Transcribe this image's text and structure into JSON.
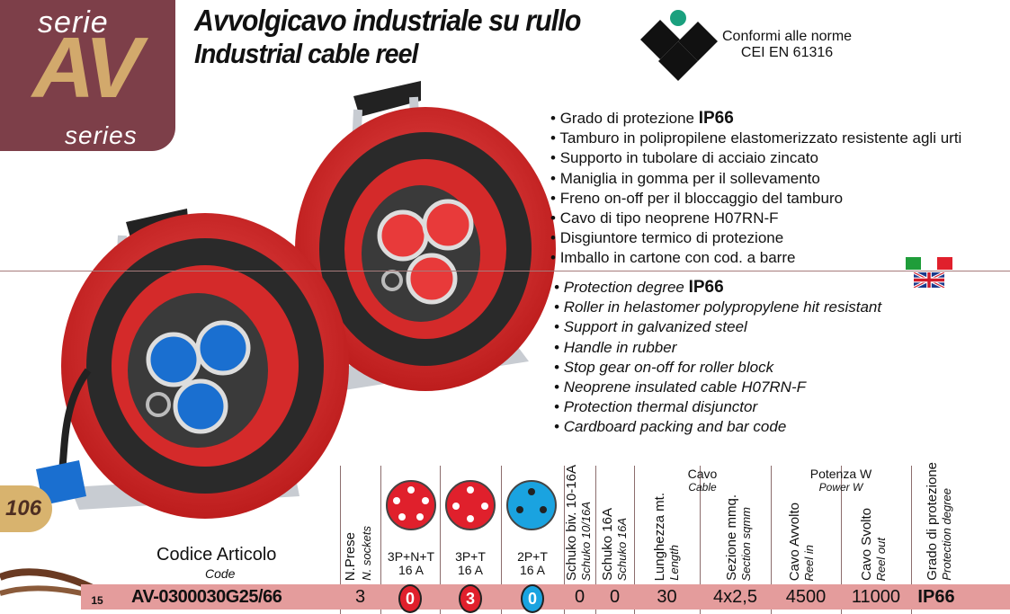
{
  "badge": {
    "serie": "serie",
    "av": "AV",
    "series": "series"
  },
  "title": {
    "it": "Avvolgicavo industriale su rullo",
    "en": "Industrial cable reel"
  },
  "norms": {
    "line1": "Conformi alle norme",
    "line2": "CEI EN 61316"
  },
  "features_it": [
    {
      "text": "Grado di protezione ",
      "strong": "IP66"
    },
    {
      "text": "Tamburo in polipropilene elastomerizzato resistente agli urti"
    },
    {
      "text": "Supporto in tubolare di acciaio zincato"
    },
    {
      "text": "Maniglia in gomma per il sollevamento"
    },
    {
      "text": "Freno on-off per il bloccaggio del tamburo"
    },
    {
      "text": "Cavo di tipo neoprene H07RN-F"
    },
    {
      "text": "Disgiuntore termico di protezione"
    },
    {
      "text": "Imballo in cartone con cod. a barre"
    }
  ],
  "features_en": [
    {
      "text": "Protection degree ",
      "strong": "IP66"
    },
    {
      "text": "Roller in helastomer polypropylene hit resistant"
    },
    {
      "text": "Support in galvanized steel"
    },
    {
      "text": "Handle in rubber"
    },
    {
      "text": "Stop gear on-off for roller block"
    },
    {
      "text": "Neoprene insulated cable H07RN-F"
    },
    {
      "text": "Protection thermal disjunctor"
    },
    {
      "text": "Cardboard packing and bar code"
    }
  ],
  "page_number": "106",
  "table": {
    "code_it": "Codice Articolo",
    "code_en": "Code",
    "headers": {
      "sockets_it": "N.Prese",
      "sockets_en": "N. sockets",
      "p1": "3P+N+T",
      "p1a": "16 A",
      "p2": "3P+T",
      "p2a": "16 A",
      "p3": "2P+T",
      "p3a": "16 A",
      "schuko_biv_it": "Schuko biv. 10-16A",
      "schuko_biv_en": "Schuko 10/16A",
      "schuko16_it": "Schuko 16A",
      "schuko16_en": "Schuko 16A",
      "cable_it": "Cavo",
      "cable_en": "Cable",
      "length_it": "Lunghezza mt.",
      "length_en": "Length",
      "section_it": "Sezione mmq.",
      "section_en": "Section sqmm",
      "power_it": "Potenza W",
      "power_en": "Power W",
      "reelin_it": "Cavo Avvolto",
      "reelin_en": "Reel in",
      "reelout_it": "Cavo Svolto",
      "reelout_en": "Reel out",
      "ip_it": "Grado di protezione",
      "ip_en": "Protection degree"
    },
    "row": {
      "index": "15",
      "code": "AV-0300030G25/66",
      "sockets": "3",
      "p1": "0",
      "p2": "3",
      "p3": "0",
      "schuko_biv": "0",
      "schuko16": "0",
      "length": "30",
      "section": "4x2,5",
      "reel_in": "4500",
      "reel_out": "11000",
      "ip": "IP66"
    }
  },
  "colors": {
    "badge": "#7d3f49",
    "accent": "#d2a96c",
    "row": "#e49c9c",
    "pin_red": "#e0202c",
    "pin_blue": "#1aa3e0"
  }
}
